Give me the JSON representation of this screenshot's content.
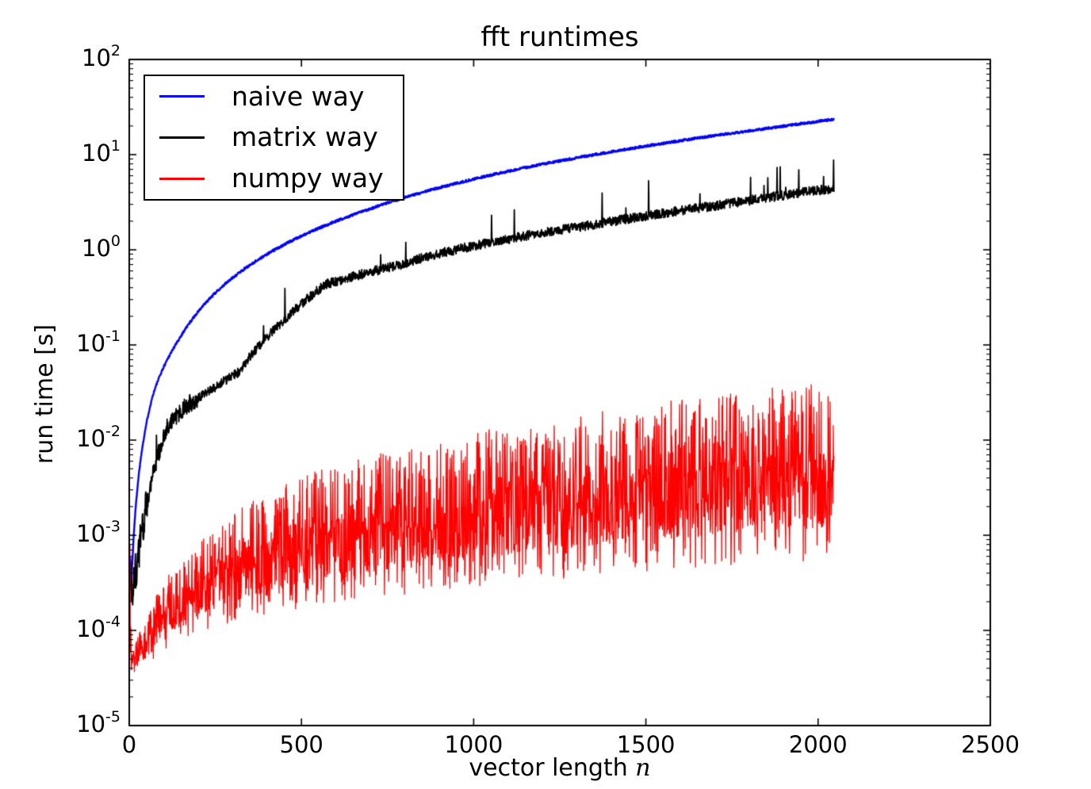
{
  "figure": {
    "background": "#ffffff",
    "axis_color": "#000000"
  },
  "chart_data": {
    "type": "line",
    "title": "fft runtimes",
    "xlabel": "vector length n",
    "xlabel_prefix": "vector length ",
    "xlabel_var": "n",
    "ylabel": "run time [s]",
    "grid": false,
    "x_axis": {
      "scale": "linear",
      "min": 0,
      "max": 2500,
      "ticks": [
        0,
        500,
        1000,
        1500,
        2000,
        2500
      ]
    },
    "y_axis": {
      "scale": "log",
      "min_exponent": -5,
      "max_exponent": 2,
      "mantissa": "10",
      "tick_exponents": [
        2,
        1,
        0,
        -1,
        -2,
        -3,
        -4,
        -5
      ]
    },
    "legend": {
      "position": "upper left",
      "entries": [
        "naive way",
        "matrix way",
        "numpy way"
      ]
    },
    "series": [
      {
        "name": "naive way",
        "color": "#0000ff",
        "style": "noisy-line",
        "line_width": 2.4,
        "n_start": 3,
        "n_end": 2046,
        "noise_decades": 0.012,
        "anchor_points": [
          [
            3,
            0.0006
          ],
          [
            6,
            0.00032
          ],
          [
            10,
            0.0006
          ],
          [
            20,
            0.0022
          ],
          [
            35,
            0.007
          ],
          [
            69,
            0.03
          ],
          [
            138,
            0.105
          ],
          [
            276,
            0.43
          ],
          [
            453,
            1.15
          ],
          [
            700,
            2.7
          ],
          [
            891,
            4.4
          ],
          [
            1150,
            7.3
          ],
          [
            1351,
            10.0
          ],
          [
            1600,
            14.0
          ],
          [
            1835,
            18.5
          ],
          [
            2046,
            23.5
          ]
        ]
      },
      {
        "name": "matrix way",
        "color": "#000000",
        "style": "noisy-line",
        "line_width": 1.8,
        "n_start": 3,
        "n_end": 2046,
        "noise_decades": 0.05,
        "anchor_points": [
          [
            3,
            0.0005
          ],
          [
            7,
            0.00024
          ],
          [
            23,
            0.00045
          ],
          [
            50,
            0.002
          ],
          [
            115,
            0.015
          ],
          [
            244,
            0.035
          ],
          [
            315,
            0.051
          ],
          [
            569,
            0.43
          ],
          [
            776,
            0.68
          ],
          [
            891,
            0.9
          ],
          [
            1351,
            1.85
          ],
          [
            1700,
            2.9
          ],
          [
            2046,
            4.45
          ]
        ]
      },
      {
        "name": "numpy way",
        "color": "#ff0000",
        "style": "noisy-band-line",
        "line_width": 1.3,
        "n_start": 2,
        "n_end": 2046,
        "lower_envelope": [
          [
            2,
            3.2e-05
          ],
          [
            10,
            3.3e-05
          ],
          [
            50,
            4e-05
          ],
          [
            100,
            6e-05
          ],
          [
            200,
            9e-05
          ],
          [
            500,
            0.00016
          ],
          [
            1000,
            0.00026
          ],
          [
            1500,
            0.00038
          ],
          [
            2046,
            0.0005
          ]
        ],
        "upper_envelope": [
          [
            2,
            0.0008
          ],
          [
            10,
            7e-05
          ],
          [
            50,
            0.00013
          ],
          [
            100,
            0.00032
          ],
          [
            200,
            0.0008
          ],
          [
            500,
            0.0042
          ],
          [
            1000,
            0.012
          ],
          [
            1500,
            0.024
          ],
          [
            2046,
            0.042
          ]
        ]
      }
    ]
  }
}
